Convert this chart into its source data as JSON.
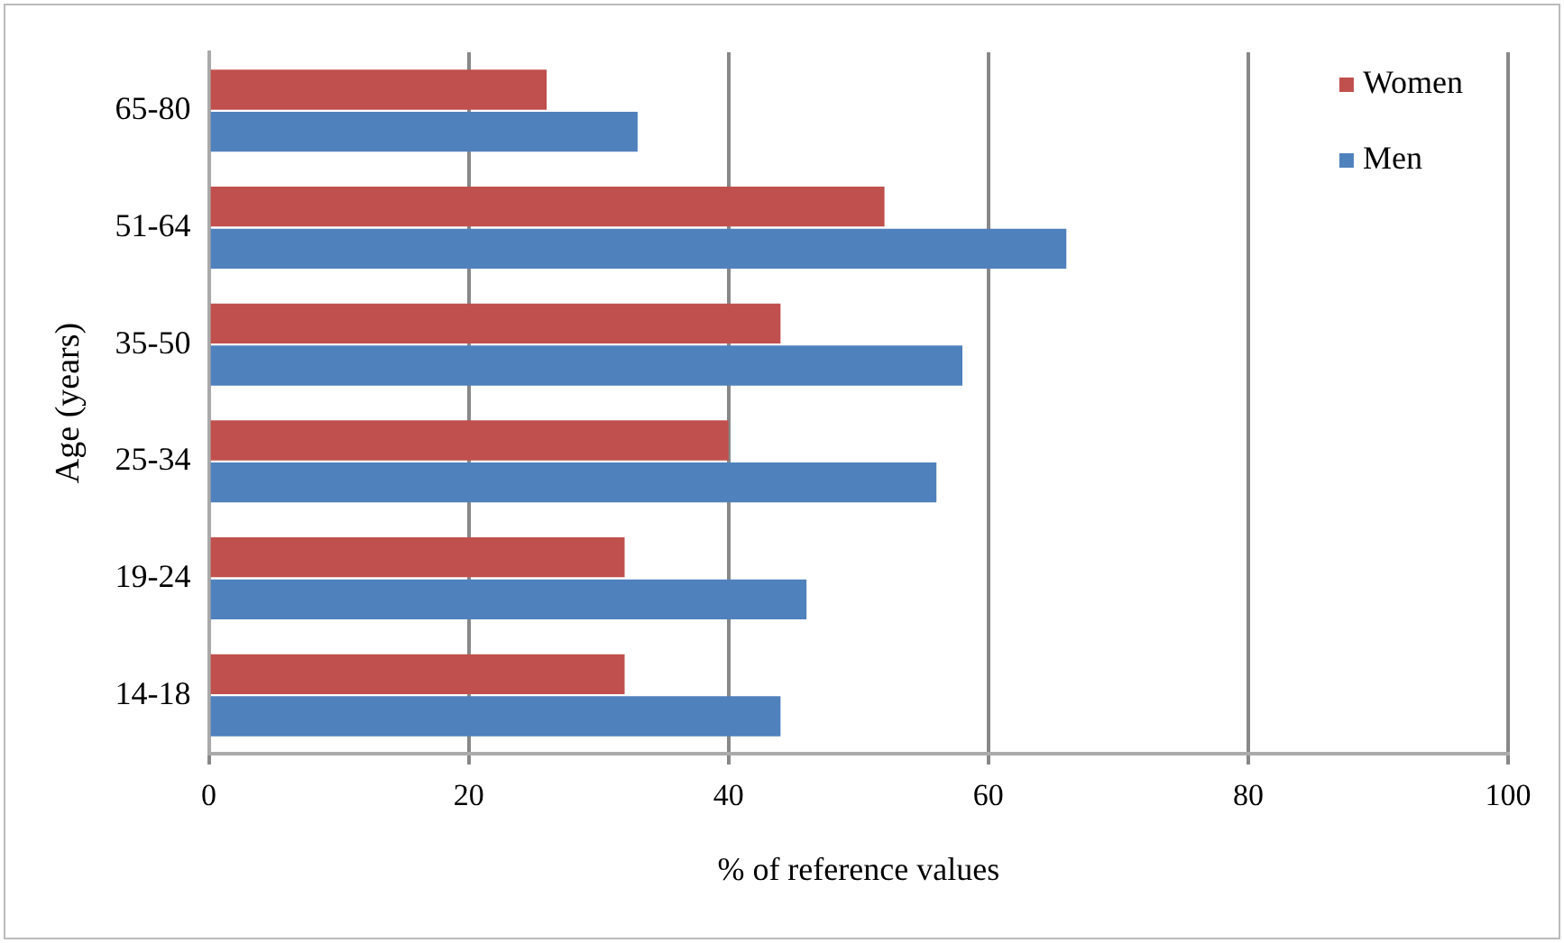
{
  "chart_data": {
    "type": "bar",
    "orientation": "horizontal",
    "xlabel": "% of reference values",
    "ylabel": "Age (years)",
    "categories": [
      "65-80",
      "51-64",
      "35-50",
      "25-34",
      "19-24",
      "14-18"
    ],
    "series": [
      {
        "name": "Women",
        "color": "#c0504d",
        "values": [
          26,
          52,
          44,
          40,
          32,
          32
        ]
      },
      {
        "name": "Men",
        "color": "#4f81bd",
        "values": [
          33,
          66,
          58,
          56,
          46,
          44
        ]
      }
    ],
    "xlim": [
      0,
      100
    ],
    "xticks": [
      0,
      20,
      40,
      60,
      80,
      100
    ],
    "grid": "x",
    "legend": "top right"
  }
}
